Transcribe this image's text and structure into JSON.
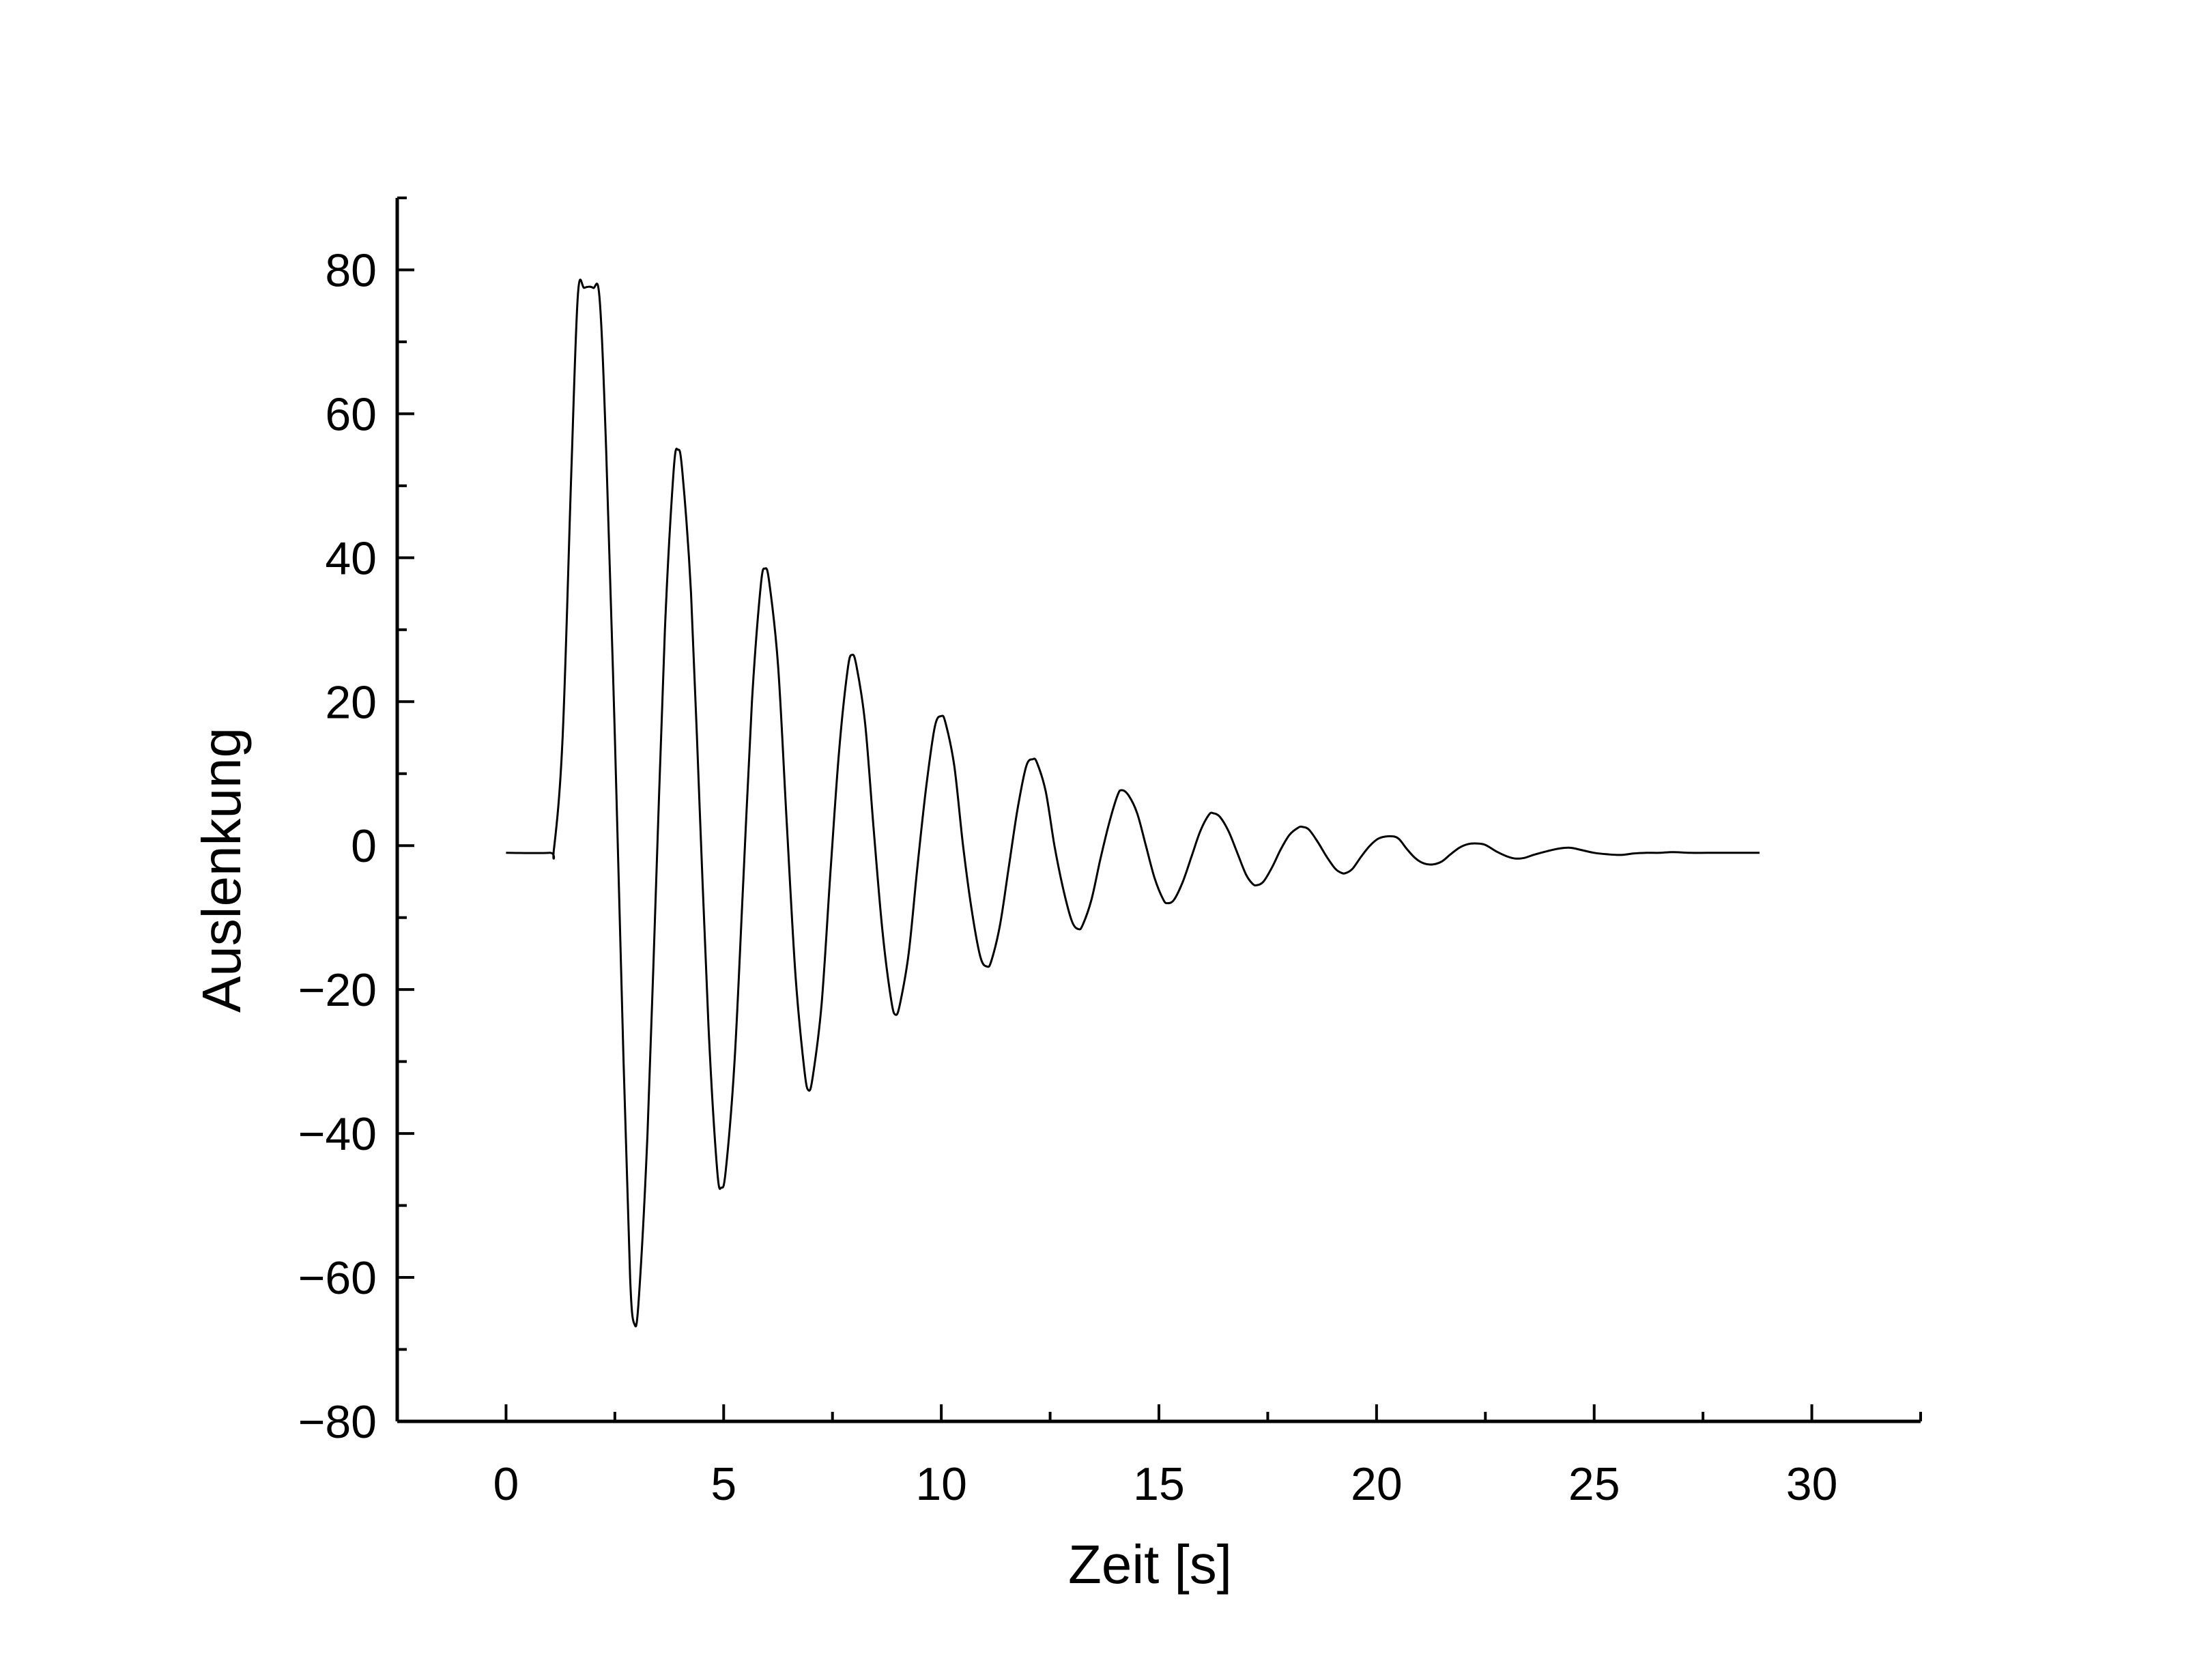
{
  "chart_data": {
    "type": "line",
    "title": "",
    "xlabel": "Zeit [s]",
    "ylabel": "Auslenkung",
    "xlim": [
      -2.5,
      32.5
    ],
    "ylim": [
      -80,
      90
    ],
    "xticks": [
      0,
      5,
      10,
      15,
      20,
      25,
      30
    ],
    "xtick_labels": [
      "0",
      "5",
      "10",
      "15",
      "20",
      "25",
      "30"
    ],
    "yticks": [
      -80,
      -60,
      -40,
      -20,
      0,
      20,
      40,
      60,
      80
    ],
    "ytick_labels": [
      "−80",
      "−60",
      "−40",
      "−20",
      "0",
      "20",
      "40",
      "60",
      "80"
    ],
    "grid": false,
    "line_color": "#000000",
    "series": [
      {
        "points": [
          [
            0.0,
            -1.0
          ],
          [
            1.0,
            -1.0
          ],
          [
            1.1,
            -0.5
          ],
          [
            1.3,
            15.0
          ],
          [
            1.5,
            52.0
          ],
          [
            1.65,
            76.5
          ],
          [
            1.8,
            77.5
          ],
          [
            2.0,
            77.5
          ],
          [
            2.15,
            76.0
          ],
          [
            2.3,
            55.0
          ],
          [
            2.5,
            15.0
          ],
          [
            2.7,
            -30.0
          ],
          [
            2.85,
            -60.0
          ],
          [
            2.95,
            -66.5
          ],
          [
            3.05,
            -63.0
          ],
          [
            3.25,
            -40.0
          ],
          [
            3.45,
            -5.0
          ],
          [
            3.65,
            30.0
          ],
          [
            3.85,
            52.0
          ],
          [
            3.95,
            55.0
          ],
          [
            4.05,
            52.0
          ],
          [
            4.25,
            35.0
          ],
          [
            4.45,
            5.0
          ],
          [
            4.65,
            -25.0
          ],
          [
            4.85,
            -45.0
          ],
          [
            4.95,
            -47.5
          ],
          [
            5.05,
            -45.0
          ],
          [
            5.25,
            -30.0
          ],
          [
            5.45,
            -5.0
          ],
          [
            5.65,
            20.0
          ],
          [
            5.85,
            36.0
          ],
          [
            5.95,
            38.5
          ],
          [
            6.05,
            36.5
          ],
          [
            6.25,
            25.0
          ],
          [
            6.45,
            3.0
          ],
          [
            6.65,
            -18.0
          ],
          [
            6.85,
            -31.0
          ],
          [
            6.95,
            -34.0
          ],
          [
            7.05,
            -32.0
          ],
          [
            7.25,
            -22.0
          ],
          [
            7.45,
            -4.0
          ],
          [
            7.65,
            13.0
          ],
          [
            7.85,
            24.5
          ],
          [
            7.95,
            26.5
          ],
          [
            8.05,
            25.0
          ],
          [
            8.25,
            17.0
          ],
          [
            8.45,
            2.0
          ],
          [
            8.65,
            -12.0
          ],
          [
            8.85,
            -21.5
          ],
          [
            8.95,
            -23.5
          ],
          [
            9.05,
            -22.0
          ],
          [
            9.25,
            -15.0
          ],
          [
            9.45,
            -3.0
          ],
          [
            9.65,
            8.0
          ],
          [
            9.85,
            16.5
          ],
          [
            10.0,
            18.0
          ],
          [
            10.1,
            17.0
          ],
          [
            10.3,
            11.0
          ],
          [
            10.5,
            0.0
          ],
          [
            10.7,
            -9.0
          ],
          [
            10.9,
            -15.5
          ],
          [
            11.05,
            -16.8
          ],
          [
            11.15,
            -16.0
          ],
          [
            11.35,
            -11.0
          ],
          [
            11.55,
            -3.0
          ],
          [
            11.75,
            5.0
          ],
          [
            11.95,
            11.0
          ],
          [
            12.1,
            12.0
          ],
          [
            12.2,
            11.5
          ],
          [
            12.4,
            7.5
          ],
          [
            12.6,
            0.0
          ],
          [
            12.8,
            -6.0
          ],
          [
            13.0,
            -10.5
          ],
          [
            13.15,
            -11.6
          ],
          [
            13.25,
            -11.0
          ],
          [
            13.45,
            -7.5
          ],
          [
            13.65,
            -2.0
          ],
          [
            13.85,
            3.0
          ],
          [
            14.05,
            7.0
          ],
          [
            14.15,
            7.7
          ],
          [
            14.3,
            7.0
          ],
          [
            14.5,
            4.5
          ],
          [
            14.7,
            0.0
          ],
          [
            14.9,
            -4.5
          ],
          [
            15.1,
            -7.5
          ],
          [
            15.2,
            -8.0
          ],
          [
            15.35,
            -7.5
          ],
          [
            15.55,
            -5.0
          ],
          [
            15.75,
            -1.5
          ],
          [
            15.95,
            2.0
          ],
          [
            16.15,
            4.3
          ],
          [
            16.25,
            4.5
          ],
          [
            16.4,
            4.0
          ],
          [
            16.6,
            2.0
          ],
          [
            16.8,
            -1.0
          ],
          [
            17.0,
            -4.0
          ],
          [
            17.15,
            -5.3
          ],
          [
            17.25,
            -5.5
          ],
          [
            17.4,
            -5.0
          ],
          [
            17.6,
            -3.0
          ],
          [
            17.8,
            -0.5
          ],
          [
            18.0,
            1.5
          ],
          [
            18.2,
            2.5
          ],
          [
            18.3,
            2.6
          ],
          [
            18.45,
            2.2
          ],
          [
            18.65,
            0.5
          ],
          [
            18.85,
            -1.5
          ],
          [
            19.05,
            -3.2
          ],
          [
            19.2,
            -3.8
          ],
          [
            19.3,
            -3.8
          ],
          [
            19.45,
            -3.2
          ],
          [
            19.65,
            -1.5
          ],
          [
            19.85,
            0.0
          ],
          [
            20.05,
            1.0
          ],
          [
            20.3,
            1.3
          ],
          [
            20.5,
            1.0
          ],
          [
            20.7,
            -0.5
          ],
          [
            20.9,
            -1.8
          ],
          [
            21.1,
            -2.5
          ],
          [
            21.3,
            -2.6
          ],
          [
            21.5,
            -2.2
          ],
          [
            21.7,
            -1.2
          ],
          [
            21.9,
            -0.3
          ],
          [
            22.1,
            0.2
          ],
          [
            22.3,
            0.3
          ],
          [
            22.5,
            0.1
          ],
          [
            22.75,
            -0.8
          ],
          [
            23.0,
            -1.5
          ],
          [
            23.2,
            -1.8
          ],
          [
            23.4,
            -1.7
          ],
          [
            23.6,
            -1.3
          ],
          [
            23.9,
            -0.8
          ],
          [
            24.2,
            -0.4
          ],
          [
            24.45,
            -0.3
          ],
          [
            24.7,
            -0.6
          ],
          [
            25.0,
            -1.0
          ],
          [
            25.3,
            -1.2
          ],
          [
            25.6,
            -1.3
          ],
          [
            25.9,
            -1.1
          ],
          [
            26.2,
            -1.0
          ],
          [
            26.5,
            -1.0
          ],
          [
            26.8,
            -0.9
          ],
          [
            27.2,
            -1.0
          ],
          [
            27.6,
            -1.0
          ],
          [
            28.0,
            -1.0
          ],
          [
            28.4,
            -1.0
          ],
          [
            28.8,
            -1.0
          ]
        ]
      }
    ]
  }
}
